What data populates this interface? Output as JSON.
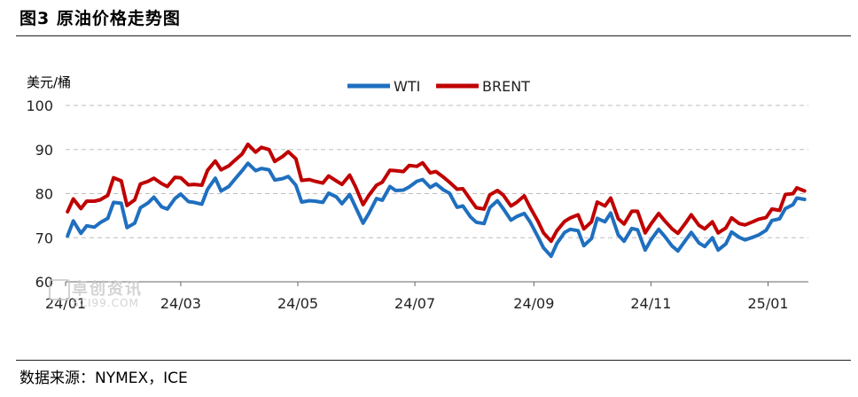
{
  "header": {
    "title": "图3 原油价格走势图"
  },
  "footer": {
    "source": "数据来源：NYMEX，ICE"
  },
  "watermark": {
    "text": "卓创资讯",
    "url": "SCI99.COM"
  },
  "chart_data": {
    "type": "line",
    "ylabel": "美元/桶",
    "ylim": [
      60,
      100
    ],
    "yticks": [
      60,
      70,
      80,
      90,
      100
    ],
    "xlim": [
      "2024-01-01",
      "2025-01-22"
    ],
    "xticks": [
      {
        "label": "24/01",
        "date": "2024-01-01"
      },
      {
        "label": "24/03",
        "date": "2024-03-01"
      },
      {
        "label": "24/05",
        "date": "2024-05-01"
      },
      {
        "label": "24/07",
        "date": "2024-07-01"
      },
      {
        "label": "24/09",
        "date": "2024-09-01"
      },
      {
        "label": "24/11",
        "date": "2024-11-01"
      },
      {
        "label": "25/01",
        "date": "2025-01-01"
      }
    ],
    "grid": true,
    "legend": "top-center",
    "series": [
      {
        "name": "WTI",
        "color": "#1f6fbf",
        "points": [
          [
            "2024-01-02",
            70.4
          ],
          [
            "2024-01-05",
            73.8
          ],
          [
            "2024-01-09",
            71.0
          ],
          [
            "2024-01-12",
            72.7
          ],
          [
            "2024-01-16",
            72.4
          ],
          [
            "2024-01-19",
            73.4
          ],
          [
            "2024-01-23",
            74.4
          ],
          [
            "2024-01-26",
            78.0
          ],
          [
            "2024-01-30",
            77.8
          ],
          [
            "2024-02-02",
            72.3
          ],
          [
            "2024-02-06",
            73.3
          ],
          [
            "2024-02-09",
            76.8
          ],
          [
            "2024-02-13",
            77.9
          ],
          [
            "2024-02-16",
            79.2
          ],
          [
            "2024-02-20",
            77.0
          ],
          [
            "2024-02-23",
            76.5
          ],
          [
            "2024-02-27",
            78.9
          ],
          [
            "2024-03-01",
            79.9
          ],
          [
            "2024-03-05",
            78.2
          ],
          [
            "2024-03-08",
            78.0
          ],
          [
            "2024-03-12",
            77.6
          ],
          [
            "2024-03-15",
            81.0
          ],
          [
            "2024-03-19",
            83.5
          ],
          [
            "2024-03-22",
            80.6
          ],
          [
            "2024-03-26",
            81.6
          ],
          [
            "2024-03-29",
            83.2
          ],
          [
            "2024-04-02",
            85.2
          ],
          [
            "2024-04-05",
            86.9
          ],
          [
            "2024-04-09",
            85.2
          ],
          [
            "2024-04-12",
            85.7
          ],
          [
            "2024-04-16",
            85.4
          ],
          [
            "2024-04-19",
            83.1
          ],
          [
            "2024-04-23",
            83.4
          ],
          [
            "2024-04-26",
            83.9
          ],
          [
            "2024-04-30",
            81.9
          ],
          [
            "2024-05-03",
            78.1
          ],
          [
            "2024-05-07",
            78.4
          ],
          [
            "2024-05-10",
            78.3
          ],
          [
            "2024-05-14",
            78.0
          ],
          [
            "2024-05-17",
            80.1
          ],
          [
            "2024-05-21",
            79.3
          ],
          [
            "2024-05-24",
            77.7
          ],
          [
            "2024-05-28",
            79.8
          ],
          [
            "2024-05-31",
            77.0
          ],
          [
            "2024-06-04",
            73.3
          ],
          [
            "2024-06-07",
            75.5
          ],
          [
            "2024-06-11",
            78.9
          ],
          [
            "2024-06-14",
            78.5
          ],
          [
            "2024-06-18",
            81.6
          ],
          [
            "2024-06-21",
            80.7
          ],
          [
            "2024-06-25",
            80.8
          ],
          [
            "2024-06-28",
            81.5
          ],
          [
            "2024-07-02",
            82.8
          ],
          [
            "2024-07-05",
            83.2
          ],
          [
            "2024-07-09",
            81.4
          ],
          [
            "2024-07-12",
            82.2
          ],
          [
            "2024-07-16",
            80.8
          ],
          [
            "2024-07-19",
            80.1
          ],
          [
            "2024-07-23",
            76.9
          ],
          [
            "2024-07-26",
            77.2
          ],
          [
            "2024-07-30",
            74.7
          ],
          [
            "2024-08-02",
            73.5
          ],
          [
            "2024-08-06",
            73.2
          ],
          [
            "2024-08-09",
            76.8
          ],
          [
            "2024-08-13",
            78.4
          ],
          [
            "2024-08-16",
            76.6
          ],
          [
            "2024-08-20",
            74.0
          ],
          [
            "2024-08-23",
            74.8
          ],
          [
            "2024-08-27",
            75.5
          ],
          [
            "2024-08-30",
            73.6
          ],
          [
            "2024-09-03",
            70.3
          ],
          [
            "2024-09-06",
            67.7
          ],
          [
            "2024-09-10",
            65.8
          ],
          [
            "2024-09-13",
            68.7
          ],
          [
            "2024-09-17",
            71.2
          ],
          [
            "2024-09-20",
            71.9
          ],
          [
            "2024-09-24",
            71.6
          ],
          [
            "2024-09-27",
            68.2
          ],
          [
            "2024-10-01",
            69.8
          ],
          [
            "2024-10-04",
            74.4
          ],
          [
            "2024-10-08",
            73.6
          ],
          [
            "2024-10-11",
            75.6
          ],
          [
            "2024-10-15",
            70.6
          ],
          [
            "2024-10-18",
            69.2
          ],
          [
            "2024-10-22",
            72.1
          ],
          [
            "2024-10-25",
            71.8
          ],
          [
            "2024-10-29",
            67.2
          ],
          [
            "2024-11-01",
            69.5
          ],
          [
            "2024-11-05",
            71.9
          ],
          [
            "2024-11-08",
            70.4
          ],
          [
            "2024-11-12",
            68.1
          ],
          [
            "2024-11-15",
            67.0
          ],
          [
            "2024-11-19",
            69.4
          ],
          [
            "2024-11-22",
            71.2
          ],
          [
            "2024-11-26",
            68.8
          ],
          [
            "2024-11-29",
            68.0
          ],
          [
            "2024-12-03",
            70.0
          ],
          [
            "2024-12-06",
            67.2
          ],
          [
            "2024-12-10",
            68.6
          ],
          [
            "2024-12-13",
            71.3
          ],
          [
            "2024-12-17",
            70.1
          ],
          [
            "2024-12-20",
            69.5
          ],
          [
            "2024-12-24",
            70.1
          ],
          [
            "2024-12-27",
            70.6
          ],
          [
            "2024-12-31",
            71.7
          ],
          [
            "2025-01-03",
            73.9
          ],
          [
            "2025-01-07",
            74.3
          ],
          [
            "2025-01-10",
            76.6
          ],
          [
            "2025-01-14",
            77.5
          ],
          [
            "2025-01-16",
            79.0
          ],
          [
            "2025-01-20",
            78.7
          ]
        ]
      },
      {
        "name": "BRENT",
        "color": "#c00000",
        "points": [
          [
            "2024-01-02",
            75.9
          ],
          [
            "2024-01-05",
            78.8
          ],
          [
            "2024-01-09",
            76.6
          ],
          [
            "2024-01-12",
            78.3
          ],
          [
            "2024-01-16",
            78.3
          ],
          [
            "2024-01-19",
            78.6
          ],
          [
            "2024-01-23",
            79.6
          ],
          [
            "2024-01-26",
            83.6
          ],
          [
            "2024-01-30",
            82.9
          ],
          [
            "2024-02-02",
            77.3
          ],
          [
            "2024-02-06",
            78.6
          ],
          [
            "2024-02-09",
            82.2
          ],
          [
            "2024-02-13",
            82.8
          ],
          [
            "2024-02-16",
            83.5
          ],
          [
            "2024-02-20",
            82.3
          ],
          [
            "2024-02-23",
            81.6
          ],
          [
            "2024-02-27",
            83.7
          ],
          [
            "2024-03-01",
            83.6
          ],
          [
            "2024-03-05",
            82.0
          ],
          [
            "2024-03-08",
            82.1
          ],
          [
            "2024-03-12",
            81.9
          ],
          [
            "2024-03-15",
            85.3
          ],
          [
            "2024-03-19",
            87.4
          ],
          [
            "2024-03-22",
            85.4
          ],
          [
            "2024-03-26",
            86.3
          ],
          [
            "2024-03-29",
            87.5
          ],
          [
            "2024-04-02",
            89.0
          ],
          [
            "2024-04-05",
            91.2
          ],
          [
            "2024-04-09",
            89.4
          ],
          [
            "2024-04-12",
            90.5
          ],
          [
            "2024-04-16",
            90.0
          ],
          [
            "2024-04-19",
            87.3
          ],
          [
            "2024-04-23",
            88.4
          ],
          [
            "2024-04-26",
            89.5
          ],
          [
            "2024-04-30",
            87.9
          ],
          [
            "2024-05-03",
            83.0
          ],
          [
            "2024-05-07",
            83.2
          ],
          [
            "2024-05-10",
            82.8
          ],
          [
            "2024-05-14",
            82.4
          ],
          [
            "2024-05-17",
            84.0
          ],
          [
            "2024-05-21",
            82.9
          ],
          [
            "2024-05-24",
            82.1
          ],
          [
            "2024-05-28",
            84.2
          ],
          [
            "2024-05-31",
            81.6
          ],
          [
            "2024-06-04",
            77.5
          ],
          [
            "2024-06-07",
            79.6
          ],
          [
            "2024-06-11",
            81.9
          ],
          [
            "2024-06-14",
            82.6
          ],
          [
            "2024-06-18",
            85.3
          ],
          [
            "2024-06-21",
            85.2
          ],
          [
            "2024-06-25",
            85.0
          ],
          [
            "2024-06-28",
            86.4
          ],
          [
            "2024-07-02",
            86.2
          ],
          [
            "2024-07-05",
            87.0
          ],
          [
            "2024-07-09",
            84.7
          ],
          [
            "2024-07-12",
            85.0
          ],
          [
            "2024-07-16",
            83.7
          ],
          [
            "2024-07-19",
            82.6
          ],
          [
            "2024-07-23",
            81.0
          ],
          [
            "2024-07-26",
            81.1
          ],
          [
            "2024-07-30",
            78.6
          ],
          [
            "2024-08-02",
            76.8
          ],
          [
            "2024-08-06",
            76.5
          ],
          [
            "2024-08-09",
            79.7
          ],
          [
            "2024-08-13",
            80.7
          ],
          [
            "2024-08-16",
            79.7
          ],
          [
            "2024-08-20",
            77.2
          ],
          [
            "2024-08-23",
            78.0
          ],
          [
            "2024-08-27",
            79.5
          ],
          [
            "2024-08-30",
            76.9
          ],
          [
            "2024-09-03",
            73.8
          ],
          [
            "2024-09-06",
            71.1
          ],
          [
            "2024-09-10",
            69.2
          ],
          [
            "2024-09-13",
            71.6
          ],
          [
            "2024-09-17",
            73.7
          ],
          [
            "2024-09-20",
            74.5
          ],
          [
            "2024-09-24",
            75.2
          ],
          [
            "2024-09-27",
            72.0
          ],
          [
            "2024-10-01",
            73.6
          ],
          [
            "2024-10-04",
            78.1
          ],
          [
            "2024-10-08",
            77.2
          ],
          [
            "2024-10-11",
            79.0
          ],
          [
            "2024-10-15",
            74.3
          ],
          [
            "2024-10-18",
            73.1
          ],
          [
            "2024-10-22",
            76.0
          ],
          [
            "2024-10-25",
            76.0
          ],
          [
            "2024-10-29",
            71.1
          ],
          [
            "2024-11-01",
            73.1
          ],
          [
            "2024-11-05",
            75.5
          ],
          [
            "2024-11-08",
            73.9
          ],
          [
            "2024-11-12",
            72.0
          ],
          [
            "2024-11-15",
            71.0
          ],
          [
            "2024-11-19",
            73.3
          ],
          [
            "2024-11-22",
            75.2
          ],
          [
            "2024-11-26",
            72.8
          ],
          [
            "2024-11-29",
            72.0
          ],
          [
            "2024-12-03",
            73.6
          ],
          [
            "2024-12-06",
            71.1
          ],
          [
            "2024-12-10",
            72.2
          ],
          [
            "2024-12-13",
            74.5
          ],
          [
            "2024-12-17",
            73.2
          ],
          [
            "2024-12-20",
            72.9
          ],
          [
            "2024-12-24",
            73.6
          ],
          [
            "2024-12-27",
            74.2
          ],
          [
            "2024-12-31",
            74.6
          ],
          [
            "2025-01-03",
            76.5
          ],
          [
            "2025-01-07",
            76.2
          ],
          [
            "2025-01-10",
            79.8
          ],
          [
            "2025-01-14",
            80.0
          ],
          [
            "2025-01-16",
            81.3
          ],
          [
            "2025-01-20",
            80.6
          ]
        ]
      }
    ]
  }
}
